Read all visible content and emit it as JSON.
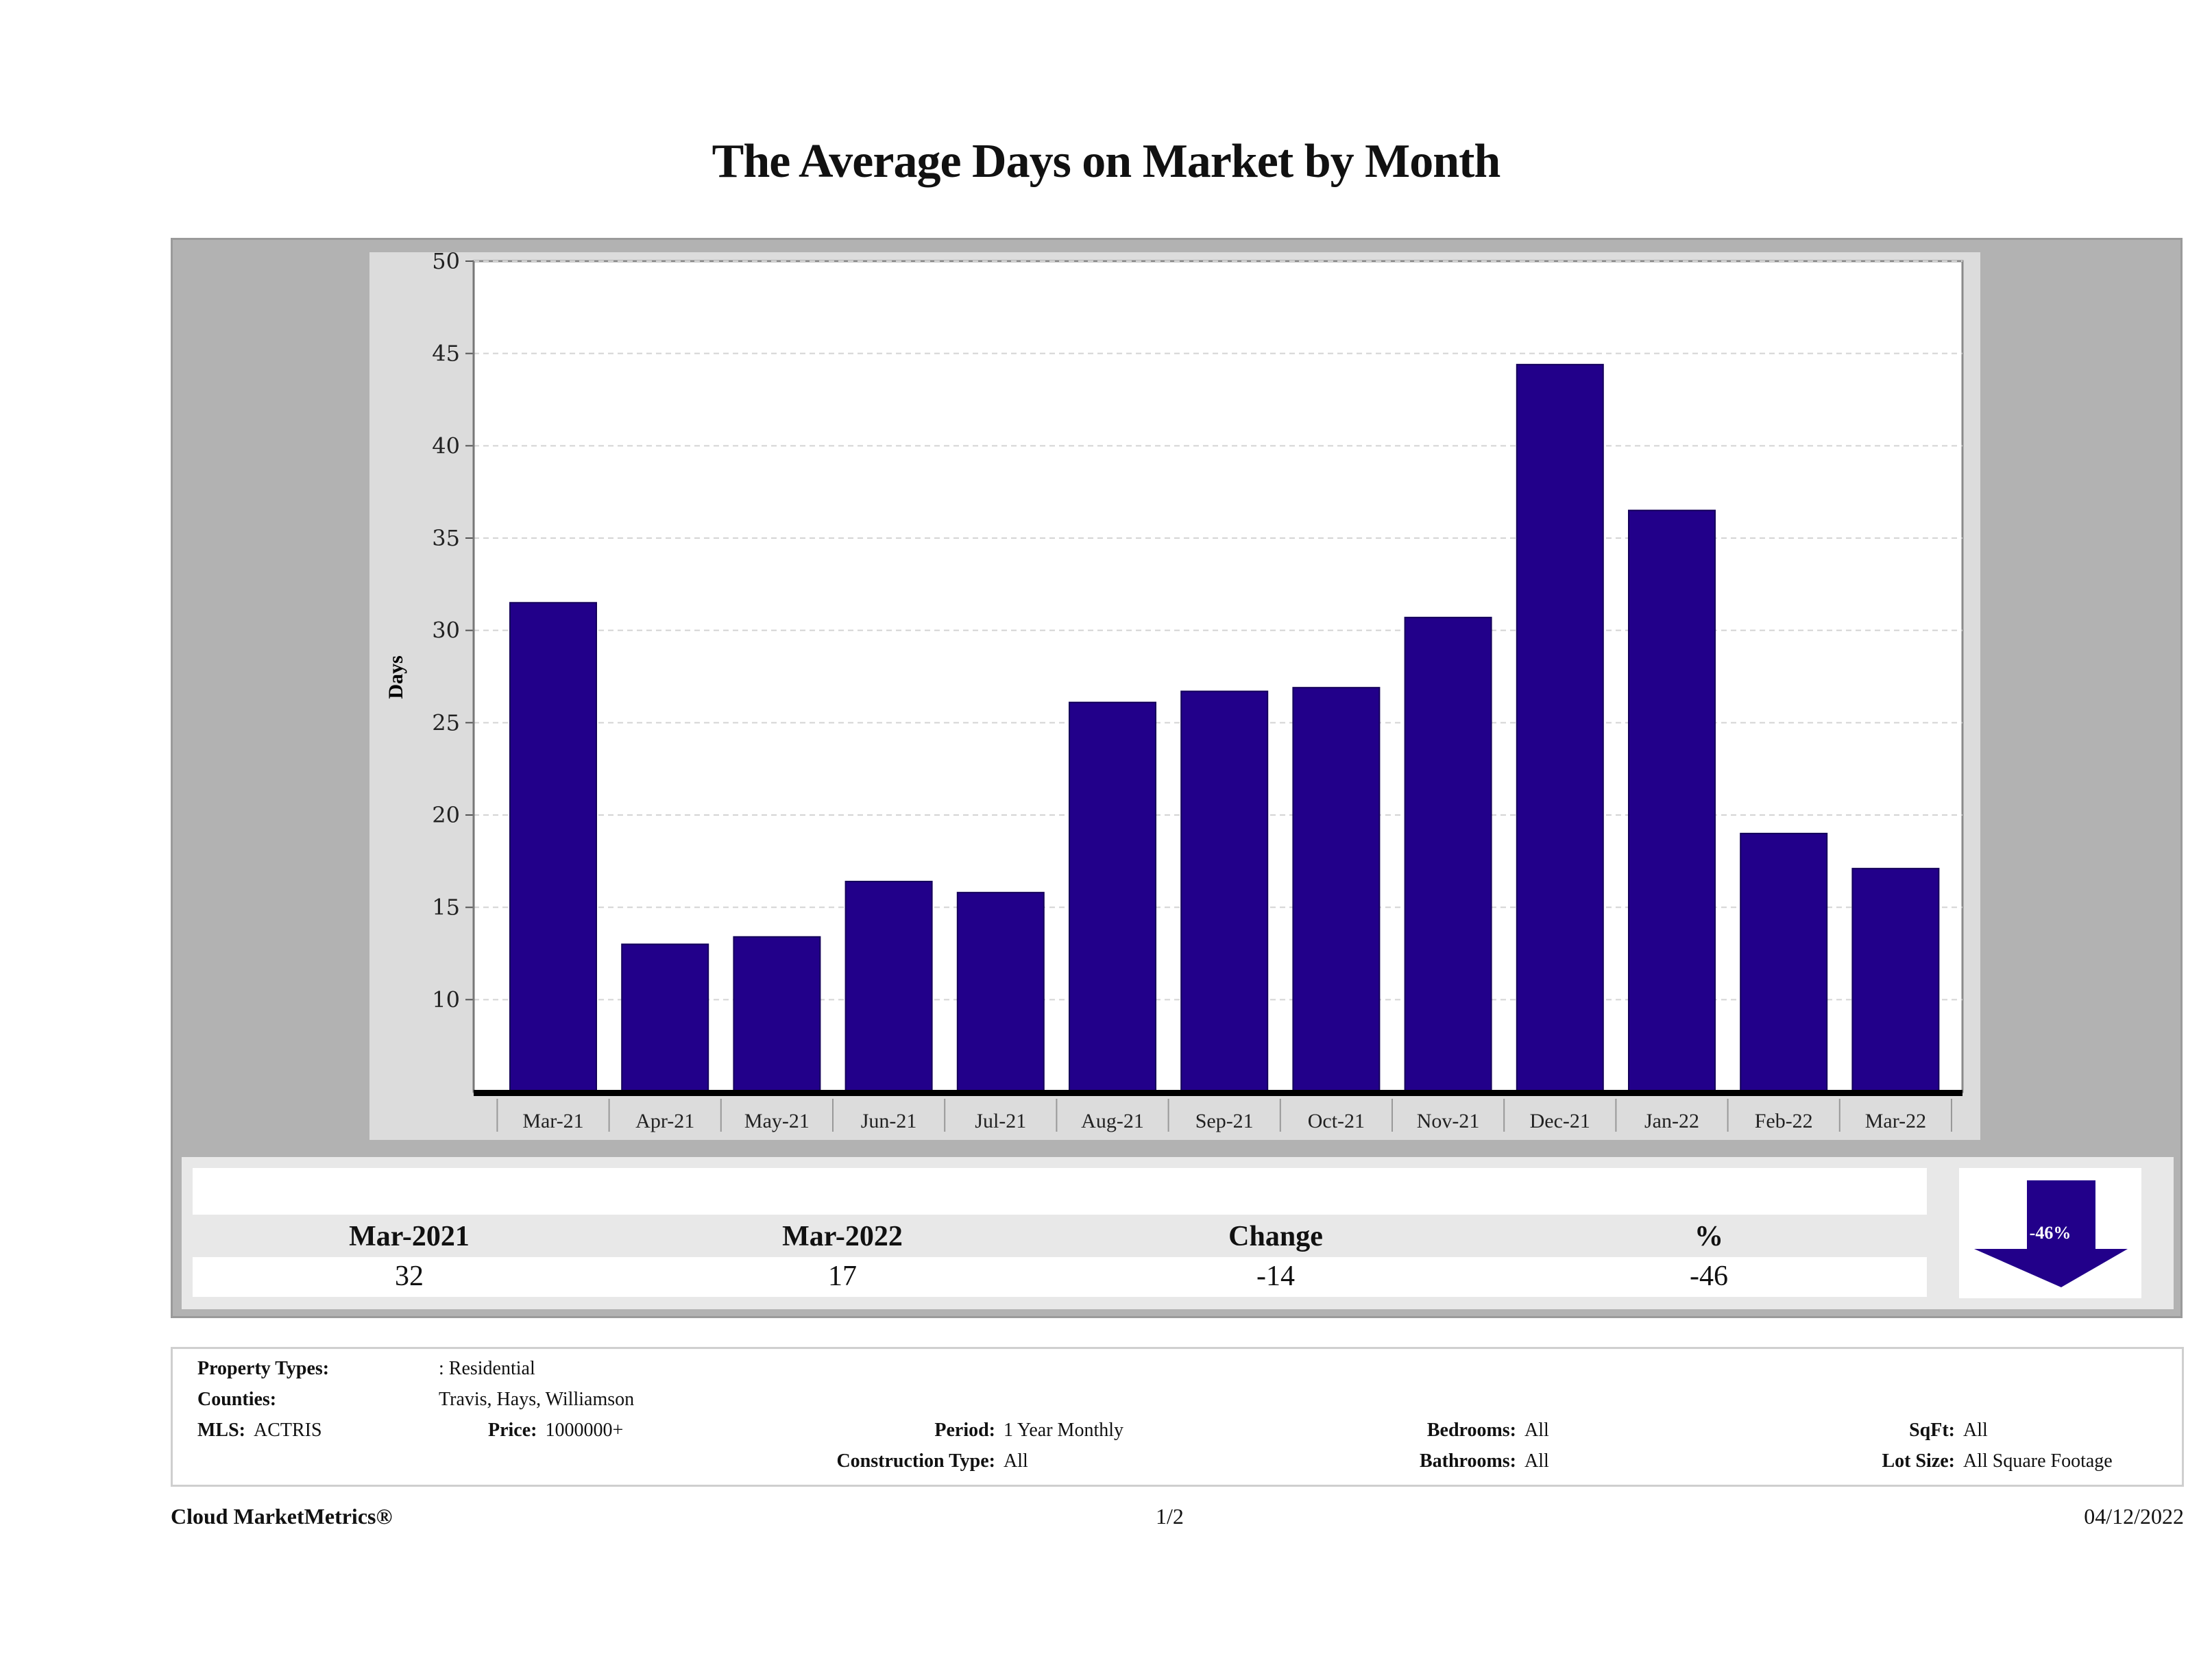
{
  "report": {
    "title": "The Average Days on Market by Month"
  },
  "chart_data": {
    "type": "bar",
    "title": "The Average Days on Market by Month",
    "xlabel": "",
    "ylabel": "Days",
    "categories": [
      "Mar-21",
      "Apr-21",
      "May-21",
      "Jun-21",
      "Jul-21",
      "Aug-21",
      "Sep-21",
      "Oct-21",
      "Nov-21",
      "Dec-21",
      "Jan-22",
      "Feb-22",
      "Mar-22"
    ],
    "values": [
      31.5,
      13.0,
      13.4,
      16.4,
      15.8,
      26.1,
      26.7,
      26.9,
      30.7,
      44.4,
      36.5,
      19.0,
      17.1
    ],
    "ylim": [
      5,
      50
    ],
    "yticks": [
      10,
      15,
      20,
      25,
      30,
      35,
      40,
      45,
      50
    ],
    "grid": true,
    "legend": "none",
    "bar_color": "#22008a"
  },
  "summary": {
    "headers": [
      "Mar-2021",
      "Mar-2022",
      "Change",
      "%"
    ],
    "values": [
      "32",
      "17",
      "-14",
      "-46"
    ],
    "arrow": {
      "direction": "down",
      "label": "-46%",
      "color": "#22008a"
    }
  },
  "details": {
    "property_types_label": "Property Types:",
    "property_types_value": ": Residential",
    "counties_label": "Counties:",
    "counties_value": "Travis, Hays, Williamson",
    "mls_label": "MLS:",
    "mls_value": "ACTRIS",
    "price_label": "Price:",
    "price_value": "1000000+",
    "period_label": "Period:",
    "period_value": "1 Year Monthly",
    "construction_label": "Construction Type:",
    "construction_value": "All",
    "bedrooms_label": "Bedrooms:",
    "bedrooms_value": "All",
    "bathrooms_label": "Bathrooms:",
    "bathrooms_value": "All",
    "sqft_label": "SqFt:",
    "sqft_value": "All",
    "lot_label": "Lot Size:",
    "lot_value": "All Square Footage"
  },
  "footer": {
    "brand": "Cloud MarketMetrics®",
    "page": "1/2",
    "date": "04/12/2022"
  }
}
